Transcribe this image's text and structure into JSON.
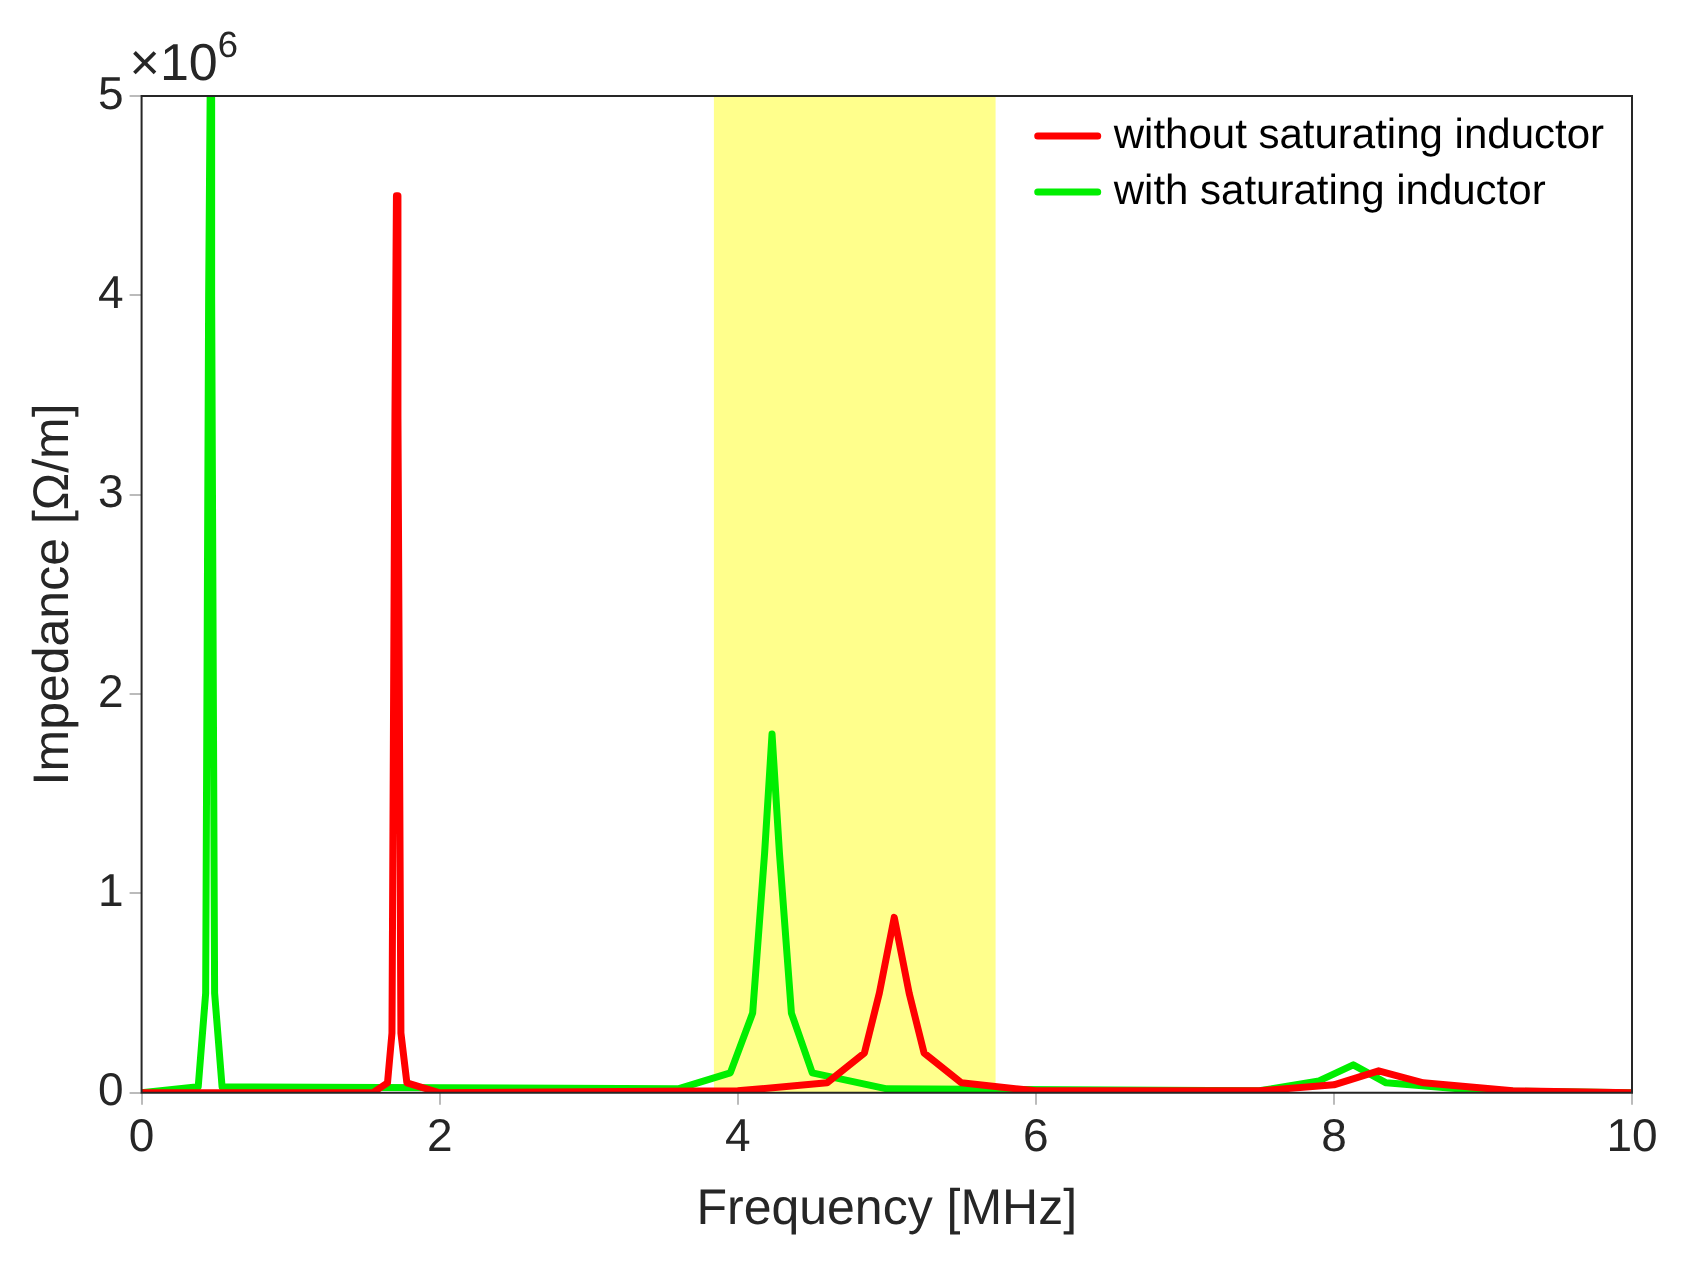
{
  "chart_data": {
    "type": "line",
    "xlabel": "Frequency [MHz]",
    "ylabel": "Impedance [Ω/m]",
    "annotations": [
      "×10$^{6}$"
    ],
    "xlim": [
      0,
      10
    ],
    "xticks": [
      0,
      2,
      4,
      6,
      8,
      10
    ],
    "ylim": [
      0,
      5
    ],
    "yticks": [
      0,
      1,
      2,
      3,
      4,
      5
    ],
    "grid": false,
    "legend": "top right",
    "line_style": "solid",
    "marker": "none",
    "bands": [
      {
        "axis": "x",
        "from": 3.84,
        "to": 5.73,
        "color": "#ffff00"
      }
    ],
    "series": [
      {
        "name": "without saturating inductor",
        "color": "#ff0000",
        "x": [
          0,
          1.55,
          1.65,
          1.68,
          1.7,
          1.71,
          1.72,
          1.74,
          1.78,
          2,
          4,
          4.6,
          4.85,
          4.95,
          5.05,
          5.15,
          5.25,
          5.5,
          6,
          7.5,
          8,
          8.3,
          8.6,
          9.2,
          10
        ],
        "values": [
          0,
          0,
          0.05,
          0.3,
          3.4,
          4.5,
          3.4,
          0.3,
          0.05,
          0,
          0.01,
          0.05,
          0.2,
          0.5,
          0.88,
          0.5,
          0.2,
          0.05,
          0.01,
          0.01,
          0.04,
          0.11,
          0.05,
          0.01,
          0
        ]
      },
      {
        "name": "with saturating inductor",
        "color": "#00ee00",
        "x": [
          0,
          0.38,
          0.43,
          0.45,
          0.46,
          0.47,
          0.49,
          0.54,
          3.6,
          3.95,
          4.1,
          4.18,
          4.23,
          4.28,
          4.36,
          4.5,
          5,
          7.5,
          7.9,
          8.13,
          8.35,
          9,
          10
        ],
        "values": [
          0,
          0.03,
          0.5,
          4,
          5,
          4,
          0.5,
          0.03,
          0.02,
          0.1,
          0.4,
          1.2,
          1.8,
          1.2,
          0.4,
          0.1,
          0.02,
          0.01,
          0.06,
          0.14,
          0.05,
          0.01,
          0
        ]
      }
    ]
  }
}
